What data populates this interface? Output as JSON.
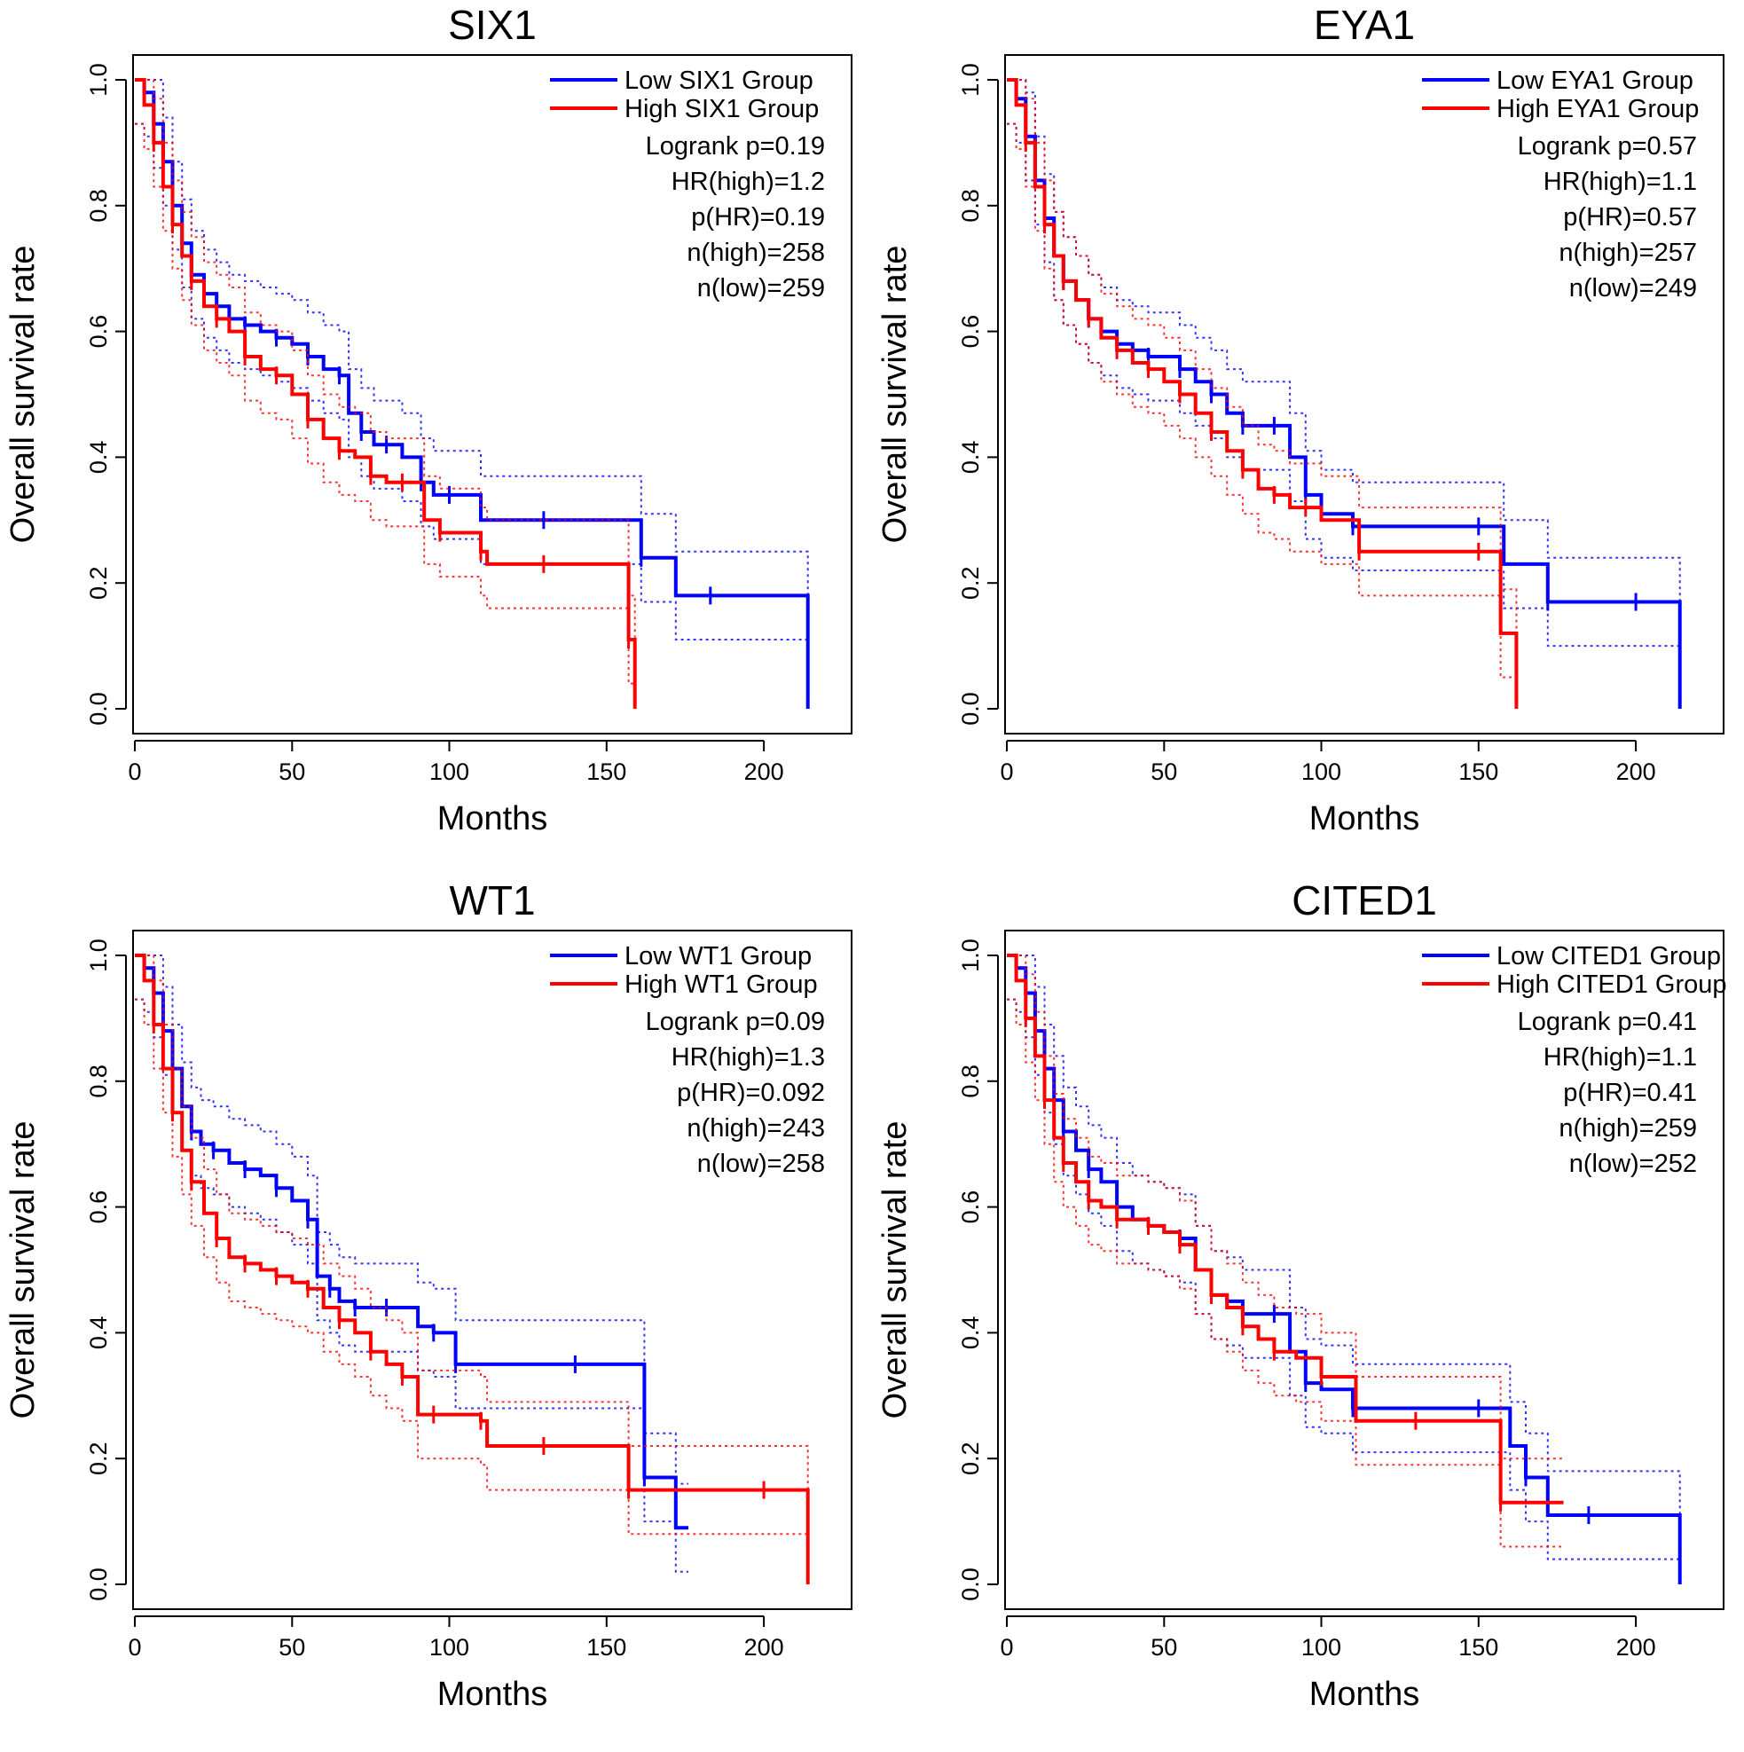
{
  "figure": {
    "colors": {
      "low": "#0000ff",
      "high": "#ff0000",
      "axis": "#000000"
    },
    "common": {
      "xlabel": "Months",
      "ylabel": "Overall survival rate",
      "xticks": [
        "0",
        "50",
        "100",
        "150",
        "200"
      ],
      "yticks": [
        "0.0",
        "0.2",
        "0.4",
        "0.6",
        "0.8",
        "1.0"
      ]
    }
  },
  "chart_data": [
    {
      "type": "line",
      "title": "SIX1",
      "xlabel": "Months",
      "ylabel": "Overall survival rate",
      "xlim": [
        0,
        220
      ],
      "ylim": [
        0,
        1
      ],
      "legend": {
        "low": "Low SIX1 Group",
        "high": "High SIX1 Group",
        "placement": "top-right"
      },
      "stats": [
        "Logrank p=0.19",
        "HR(high)=1.2",
        "p(HR)=0.19",
        "n(high)=258",
        "n(low)=259"
      ],
      "series": [
        {
          "name": "Low SIX1 Group",
          "x": [
            0,
            3,
            6,
            9,
            12,
            15,
            18,
            22,
            26,
            30,
            35,
            40,
            45,
            50,
            55,
            60,
            65,
            68,
            72,
            76,
            80,
            85,
            91,
            95,
            100,
            110,
            130,
            150,
            161,
            172,
            183,
            200,
            214
          ],
          "y": [
            1.0,
            0.98,
            0.93,
            0.87,
            0.8,
            0.74,
            0.69,
            0.66,
            0.64,
            0.62,
            0.61,
            0.6,
            0.59,
            0.58,
            0.56,
            0.54,
            0.53,
            0.47,
            0.44,
            0.42,
            0.42,
            0.4,
            0.36,
            0.34,
            0.34,
            0.3,
            0.3,
            0.3,
            0.24,
            0.18,
            0.18,
            0.18,
            0.0
          ]
        },
        {
          "name": "High SIX1 Group",
          "x": [
            0,
            3,
            6,
            9,
            12,
            15,
            18,
            22,
            26,
            30,
            35,
            40,
            45,
            50,
            55,
            60,
            65,
            70,
            75,
            80,
            85,
            92,
            97,
            103,
            110,
            112,
            130,
            150,
            157,
            159
          ],
          "y": [
            1.0,
            0.96,
            0.9,
            0.83,
            0.77,
            0.72,
            0.68,
            0.64,
            0.62,
            0.6,
            0.56,
            0.54,
            0.53,
            0.5,
            0.46,
            0.43,
            0.41,
            0.4,
            0.37,
            0.36,
            0.36,
            0.3,
            0.28,
            0.28,
            0.25,
            0.23,
            0.23,
            0.23,
            0.11,
            0.0
          ]
        }
      ]
    },
    {
      "type": "line",
      "title": "EYA1",
      "xlabel": "Months",
      "ylabel": "Overall survival rate",
      "xlim": [
        0,
        220
      ],
      "ylim": [
        0,
        1
      ],
      "legend": {
        "low": "Low EYA1 Group",
        "high": "High EYA1 Group",
        "placement": "top-right"
      },
      "stats": [
        "Logrank p=0.57",
        "HR(high)=1.1",
        "p(HR)=0.57",
        "n(high)=257",
        "n(low)=249"
      ],
      "series": [
        {
          "name": "Low EYA1 Group",
          "x": [
            0,
            3,
            6,
            9,
            12,
            15,
            18,
            22,
            26,
            30,
            35,
            40,
            45,
            50,
            55,
            60,
            65,
            70,
            75,
            80,
            85,
            90,
            95,
            100,
            110,
            130,
            150,
            158,
            172,
            185,
            200,
            214
          ],
          "y": [
            1.0,
            0.97,
            0.91,
            0.84,
            0.78,
            0.72,
            0.68,
            0.65,
            0.62,
            0.6,
            0.58,
            0.57,
            0.56,
            0.56,
            0.54,
            0.52,
            0.5,
            0.47,
            0.45,
            0.45,
            0.45,
            0.4,
            0.34,
            0.31,
            0.29,
            0.29,
            0.29,
            0.23,
            0.17,
            0.17,
            0.17,
            0.0
          ]
        },
        {
          "name": "High EYA1 Group",
          "x": [
            0,
            3,
            6,
            9,
            12,
            15,
            18,
            22,
            26,
            30,
            35,
            40,
            45,
            50,
            55,
            60,
            65,
            70,
            75,
            80,
            85,
            90,
            95,
            100,
            112,
            130,
            150,
            157,
            162
          ],
          "y": [
            1.0,
            0.96,
            0.9,
            0.83,
            0.77,
            0.72,
            0.68,
            0.65,
            0.62,
            0.59,
            0.57,
            0.55,
            0.54,
            0.52,
            0.5,
            0.47,
            0.44,
            0.41,
            0.38,
            0.35,
            0.34,
            0.32,
            0.32,
            0.3,
            0.25,
            0.25,
            0.25,
            0.12,
            0.0
          ]
        }
      ]
    },
    {
      "type": "line",
      "title": "WT1",
      "xlabel": "Months",
      "ylabel": "Overall survival rate",
      "xlim": [
        0,
        220
      ],
      "ylim": [
        0,
        1
      ],
      "legend": {
        "low": "Low WT1 Group",
        "high": "High WT1 Group",
        "placement": "top-right"
      },
      "stats": [
        "Logrank p=0.09",
        "HR(high)=1.3",
        "p(HR)=0.092",
        "n(high)=243",
        "n(low)=258"
      ],
      "series": [
        {
          "name": "Low WT1 Group",
          "x": [
            0,
            3,
            6,
            9,
            12,
            15,
            18,
            21,
            25,
            30,
            35,
            40,
            45,
            50,
            55,
            58,
            62,
            65,
            70,
            75,
            80,
            90,
            95,
            100,
            102,
            120,
            140,
            158,
            162,
            172,
            176
          ],
          "y": [
            1.0,
            0.98,
            0.94,
            0.88,
            0.82,
            0.76,
            0.72,
            0.7,
            0.69,
            0.67,
            0.66,
            0.65,
            0.63,
            0.61,
            0.58,
            0.49,
            0.47,
            0.45,
            0.44,
            0.44,
            0.44,
            0.41,
            0.4,
            0.4,
            0.35,
            0.35,
            0.35,
            0.35,
            0.17,
            0.09,
            0.09
          ]
        },
        {
          "name": "High WT1 Group",
          "x": [
            0,
            3,
            6,
            9,
            12,
            15,
            18,
            22,
            26,
            30,
            35,
            40,
            45,
            50,
            55,
            60,
            65,
            70,
            75,
            80,
            85,
            90,
            95,
            100,
            110,
            112,
            130,
            150,
            157,
            180,
            200,
            214
          ],
          "y": [
            1.0,
            0.96,
            0.89,
            0.82,
            0.75,
            0.69,
            0.64,
            0.59,
            0.55,
            0.52,
            0.51,
            0.5,
            0.49,
            0.48,
            0.47,
            0.44,
            0.42,
            0.4,
            0.37,
            0.35,
            0.33,
            0.27,
            0.27,
            0.27,
            0.26,
            0.22,
            0.22,
            0.22,
            0.15,
            0.15,
            0.15,
            0.0
          ]
        }
      ]
    },
    {
      "type": "line",
      "title": "CITED1",
      "xlabel": "Months",
      "ylabel": "Overall survival rate",
      "xlim": [
        0,
        220
      ],
      "ylim": [
        0,
        1
      ],
      "legend": {
        "low": "Low CITED1 Group",
        "high": "High CITED1 Group",
        "placement": "top-right"
      },
      "stats": [
        "Logrank p=0.41",
        "HR(high)=1.1",
        "p(HR)=0.41",
        "n(high)=259",
        "n(low)=252"
      ],
      "series": [
        {
          "name": "Low CITED1 Group",
          "x": [
            0,
            3,
            6,
            9,
            12,
            15,
            18,
            22,
            26,
            30,
            35,
            40,
            45,
            50,
            55,
            60,
            65,
            70,
            75,
            80,
            85,
            90,
            95,
            100,
            110,
            130,
            150,
            160,
            165,
            172,
            185,
            200,
            214
          ],
          "y": [
            1.0,
            0.98,
            0.94,
            0.88,
            0.82,
            0.77,
            0.72,
            0.69,
            0.66,
            0.64,
            0.6,
            0.58,
            0.57,
            0.56,
            0.55,
            0.5,
            0.46,
            0.45,
            0.43,
            0.43,
            0.43,
            0.37,
            0.32,
            0.31,
            0.28,
            0.28,
            0.28,
            0.22,
            0.17,
            0.11,
            0.11,
            0.11,
            0.0
          ]
        },
        {
          "name": "High CITED1 Group",
          "x": [
            0,
            3,
            6,
            9,
            12,
            15,
            18,
            22,
            26,
            30,
            35,
            40,
            45,
            50,
            55,
            60,
            65,
            70,
            75,
            80,
            85,
            92,
            100,
            111,
            130,
            150,
            157,
            175,
            177
          ],
          "y": [
            1.0,
            0.96,
            0.9,
            0.84,
            0.77,
            0.71,
            0.67,
            0.64,
            0.61,
            0.6,
            0.58,
            0.58,
            0.57,
            0.56,
            0.54,
            0.5,
            0.46,
            0.44,
            0.41,
            0.39,
            0.37,
            0.36,
            0.33,
            0.26,
            0.26,
            0.26,
            0.13,
            0.13,
            0.13
          ]
        }
      ]
    }
  ]
}
